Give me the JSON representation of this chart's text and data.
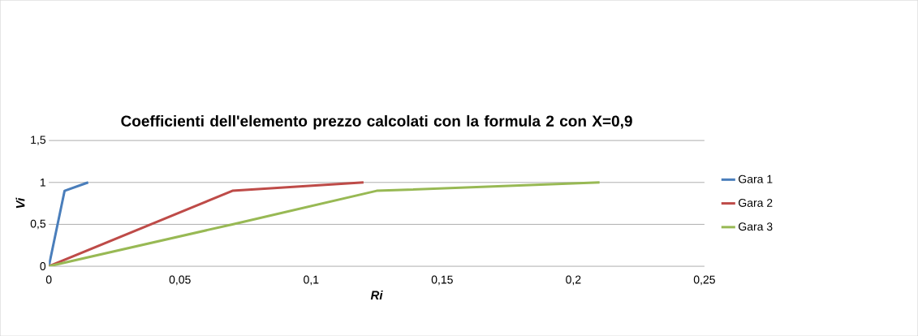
{
  "chart_data": {
    "type": "line",
    "title": "Coefficienti dell'elemento prezzo calcolati con la formula 2 con X=0,9",
    "xlabel": "Ri",
    "ylabel": "Vi",
    "series": [
      {
        "name": "Gara 1",
        "color": "#4a7ebb",
        "x": [
          0,
          0.006,
          0.015
        ],
        "values": [
          0,
          0.9,
          1
        ]
      },
      {
        "name": "Gara 2",
        "color": "#be4b48",
        "x": [
          0,
          0.07,
          0.12
        ],
        "values": [
          0,
          0.9,
          1
        ]
      },
      {
        "name": "Gara 3",
        "color": "#98b954",
        "x": [
          0,
          0.07,
          0.125,
          0.21
        ],
        "values": [
          0,
          0.5,
          0.9,
          1
        ]
      }
    ],
    "xlim": [
      0,
      0.25
    ],
    "ylim": [
      0,
      1.5
    ],
    "xticks": [
      0,
      {
        "value": 0.05,
        "label": "0,05"
      },
      {
        "value": 0.1,
        "label": "0,1"
      },
      {
        "value": 0.15,
        "label": "0,15"
      },
      {
        "value": 0.2,
        "label": "0,2"
      },
      {
        "value": 0.25,
        "label": "0,25"
      }
    ],
    "yticks": [
      0,
      {
        "value": 0.5,
        "label": "0,5"
      },
      1,
      {
        "value": 1.5,
        "label": "1,5"
      }
    ],
    "grid": "y",
    "legend": "right",
    "marker": "none",
    "line_style": "solid"
  }
}
